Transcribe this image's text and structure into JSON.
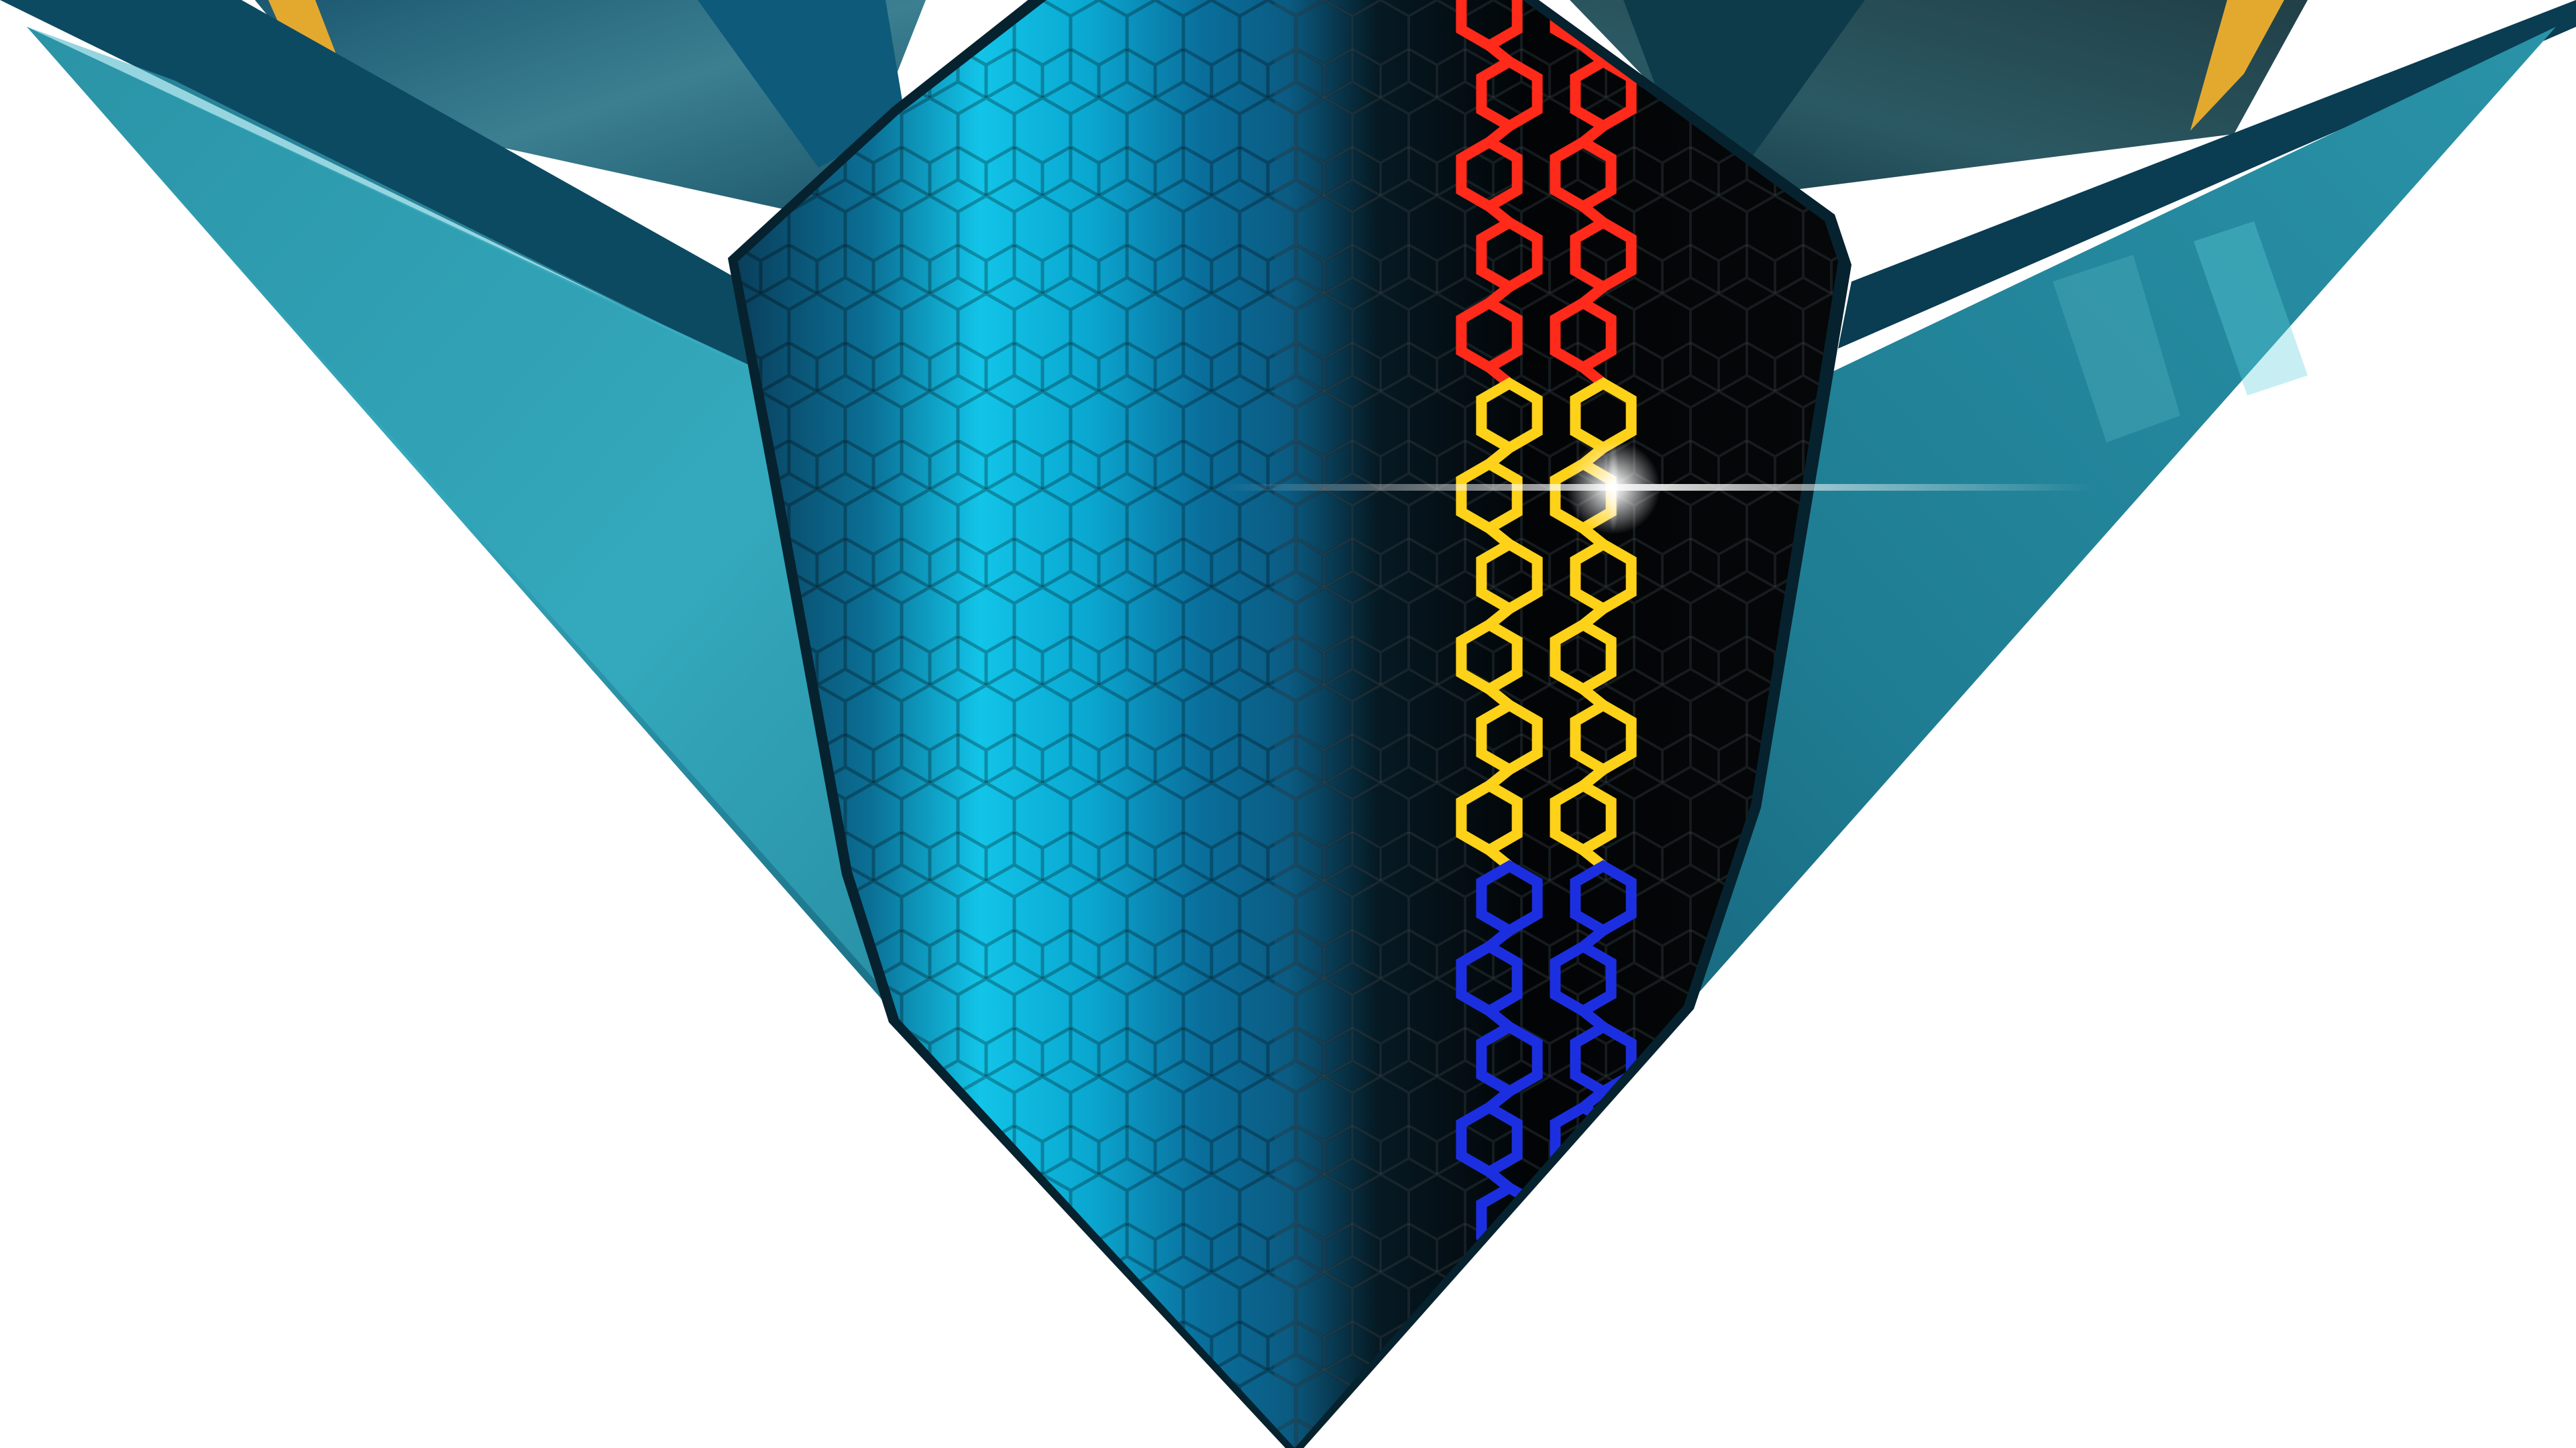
{
  "artwork": {
    "colors": {
      "background": "#ffffff",
      "teal_light": "#3fb3c4",
      "teal_mid": "#2a93a8",
      "teal_dark": "#0f4f66",
      "navy_band": "#0a3c52",
      "gold_stripe": "#e3a92e",
      "shield_cyan": "#10c3e6",
      "shield_blue": "#0a6f9a",
      "shield_black": "#050708",
      "hex_red": "#ff2a1a",
      "hex_yellow": "#ffd21a",
      "hex_blue": "#1c2fe0",
      "flare": "#ffffff"
    },
    "icons": [
      "hexagon-chain-motif",
      "lens-flare-sparkle"
    ]
  }
}
